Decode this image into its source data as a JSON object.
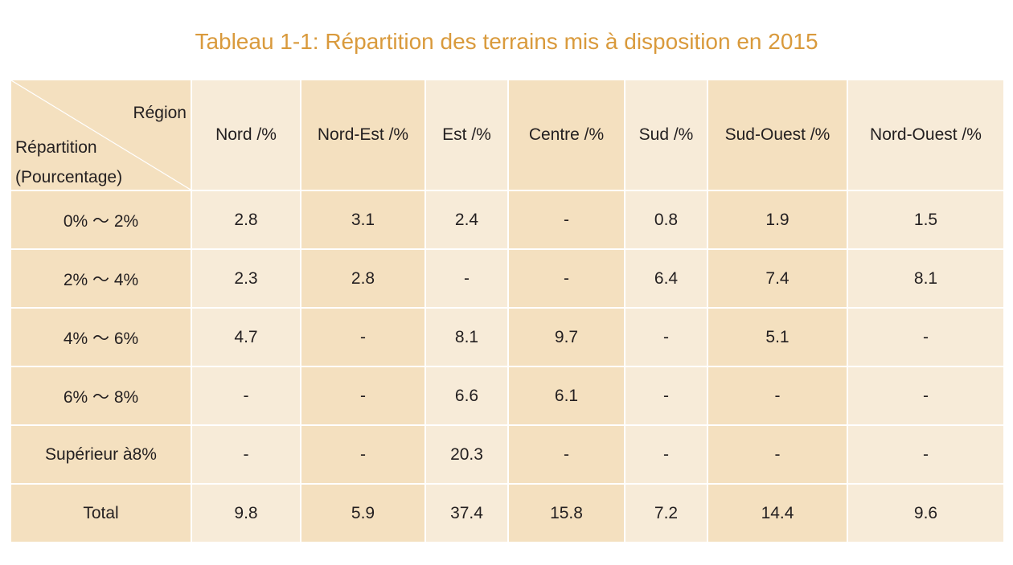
{
  "title": "Tableau 1-1: Répartition des terrains mis à disposition en 2015",
  "colors": {
    "title": "#d99a3c",
    "cell_light": "#f7ebd8",
    "cell_dark": "#f4e0bf"
  },
  "chart_data": {
    "type": "table",
    "title": "Tableau 1-1: Répartition des terrains mis à disposition en 2015",
    "corner": {
      "column_header": "Région",
      "row_header_line1": "Répartition",
      "row_header_line2": "(Pourcentage)"
    },
    "columns": [
      "Nord /%",
      "Nord-Est /%",
      "Est /%",
      "Centre /%",
      "Sud /%",
      "Sud-Ouest /%",
      "Nord-Ouest /%"
    ],
    "rows": [
      {
        "label": "0% ～ 2%",
        "values": [
          "2.8",
          "3.1",
          "2.4",
          "-",
          "0.8",
          "1.9",
          "1.5"
        ]
      },
      {
        "label": "2% ～ 4%",
        "values": [
          "2.3",
          "2.8",
          "-",
          "-",
          "6.4",
          "7.4",
          "8.1"
        ]
      },
      {
        "label": "4% ～ 6%",
        "values": [
          "4.7",
          "-",
          "8.1",
          "9.7",
          "-",
          "5.1",
          "-"
        ]
      },
      {
        "label": "6% ～ 8%",
        "values": [
          "-",
          "-",
          "6.6",
          "6.1",
          "-",
          "-",
          "-"
        ]
      },
      {
        "label": "Supérieur à8%",
        "values": [
          "-",
          "-",
          "20.3",
          "-",
          "-",
          "-",
          "-"
        ]
      },
      {
        "label": "Total",
        "values": [
          "9.8",
          "5.9",
          "37.4",
          "15.8",
          "7.2",
          "14.4",
          "9.6"
        ]
      }
    ]
  }
}
